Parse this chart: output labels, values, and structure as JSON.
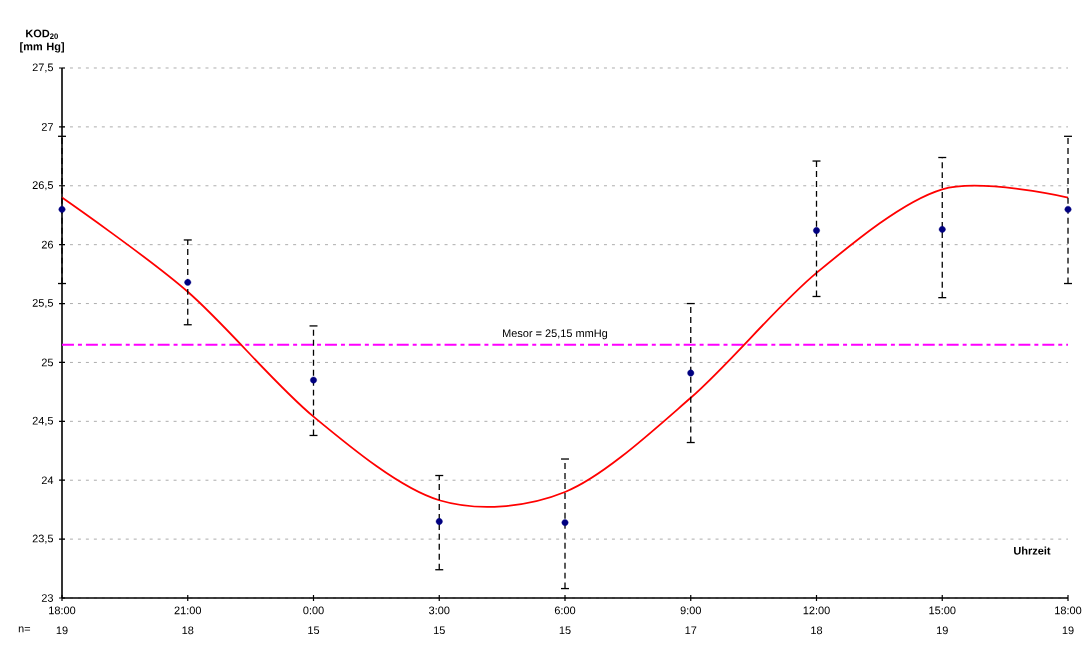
{
  "chart_data": {
    "type": "scatter",
    "ylabel": "KOD$_{20}$ [mm Hg]",
    "xlabel": "Uhrzeit",
    "categories": [
      "18:00",
      "21:00",
      "0:00",
      "3:00",
      "6:00",
      "9:00",
      "12:00",
      "15:00",
      "18:00"
    ],
    "ylim": [
      23,
      27.5
    ],
    "yticks": [
      23,
      {
        "value": 23.5,
        "label": "23,5"
      },
      24,
      {
        "value": 24.5,
        "label": "24,5"
      },
      25,
      {
        "value": 25.5,
        "label": "25,5"
      },
      26,
      {
        "value": 26.5,
        "label": "26,5"
      },
      27,
      {
        "value": 27.5,
        "label": "27,5"
      }
    ],
    "grid": "y",
    "series": [
      {
        "color": "#000080",
        "marker": "circle",
        "values": [
          26.3,
          25.68,
          24.85,
          23.65,
          23.64,
          24.91,
          26.12,
          26.13,
          26.3
        ],
        "errors": [
          [
            25.67,
            26.92
          ],
          [
            25.32,
            26.04
          ],
          [
            24.38,
            25.31
          ],
          [
            23.24,
            24.04
          ],
          [
            23.08,
            24.18
          ],
          [
            24.32,
            25.5
          ],
          [
            25.56,
            26.71
          ],
          [
            25.55,
            26.74
          ],
          [
            25.67,
            26.92
          ]
        ]
      },
      {
        "type": "line",
        "color": "#ff0000",
        "marker": "none",
        "values": [
          26.4,
          25.6,
          24.54,
          23.83,
          23.9,
          24.7,
          25.76,
          26.47,
          26.4
        ]
      }
    ],
    "ref_lines": [
      {
        "axis": "y",
        "value": 25.15,
        "label": "Mesor = 25,15 mmHg",
        "color": "#ff00ff",
        "line_style": "dashdot"
      }
    ],
    "annotations": [
      "n=",
      "19",
      "18",
      "15",
      "15",
      "15",
      "17",
      "18",
      "19",
      "19"
    ]
  }
}
